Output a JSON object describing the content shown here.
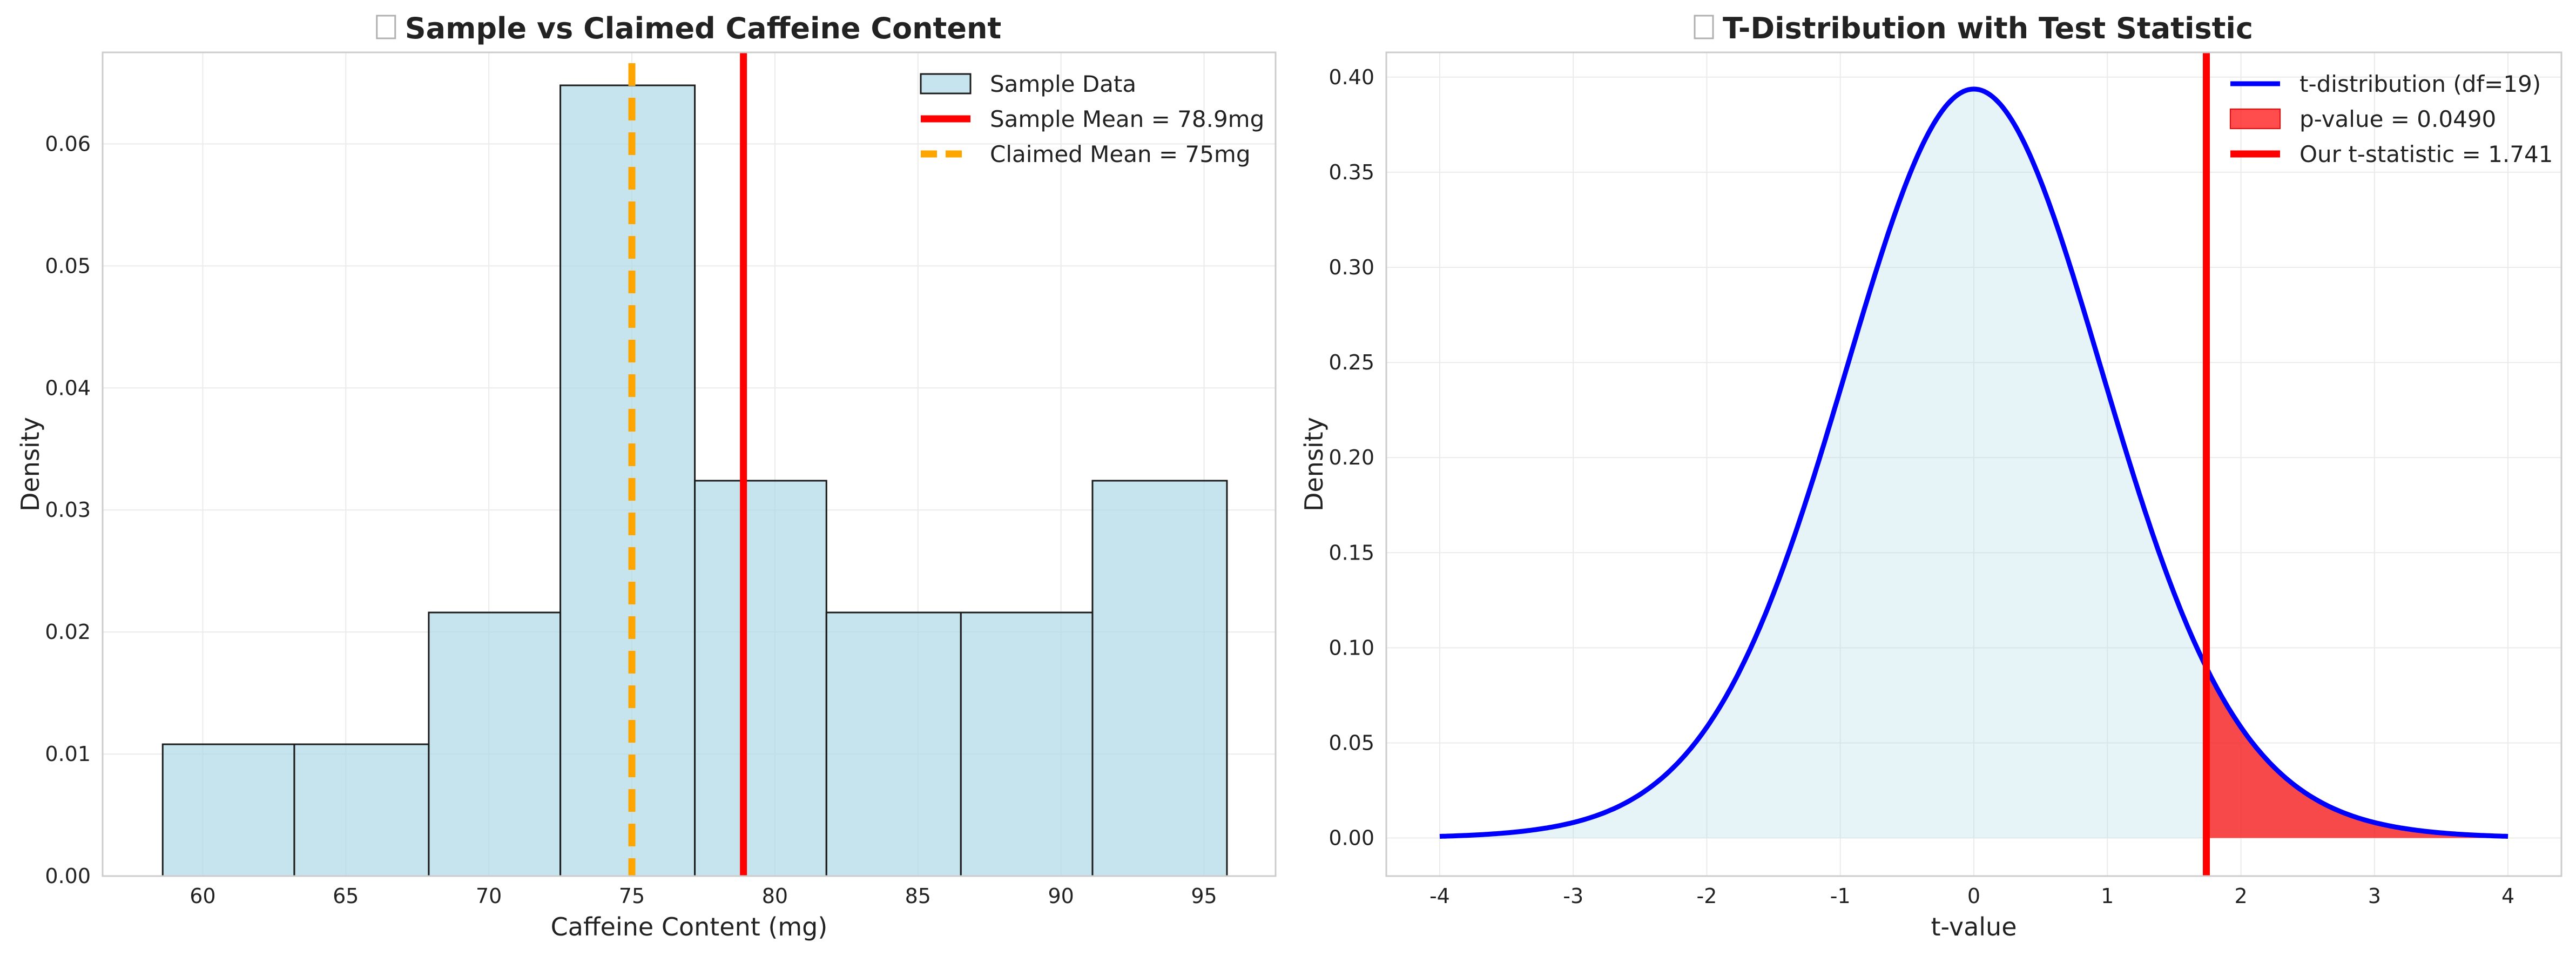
{
  "chart_data": [
    {
      "type": "bar",
      "title": "Sample vs Claimed Caffeine Content",
      "title_icon": "missing-glyph",
      "xlabel": "Caffeine Content (mg)",
      "ylabel": "Density",
      "xlim": [
        56.5,
        97.5
      ],
      "ylim": [
        0,
        0.0675
      ],
      "xticks": [
        60,
        65,
        70,
        75,
        80,
        85,
        90,
        95
      ],
      "yticks": [
        0.0,
        0.01,
        0.02,
        0.03,
        0.04,
        0.05,
        0.06
      ],
      "ytick_labels": [
        "0.00",
        "0.01",
        "0.02",
        "0.03",
        "0.04",
        "0.05",
        "0.06"
      ],
      "grid": true,
      "legend_position": "top-right",
      "bins": [
        {
          "x0": 58.6,
          "x1": 63.2,
          "value": 0.0108
        },
        {
          "x0": 63.2,
          "x1": 67.9,
          "value": 0.0108
        },
        {
          "x0": 67.9,
          "x1": 72.5,
          "value": 0.0216
        },
        {
          "x0": 72.5,
          "x1": 77.2,
          "value": 0.0648
        },
        {
          "x0": 77.2,
          "x1": 81.8,
          "value": 0.0324
        },
        {
          "x0": 81.8,
          "x1": 86.5,
          "value": 0.0216
        },
        {
          "x0": 86.5,
          "x1": 91.1,
          "value": 0.0216
        },
        {
          "x0": 91.1,
          "x1": 95.8,
          "value": 0.0324
        }
      ],
      "series": [
        {
          "name": "Sample Data",
          "kind": "histogram",
          "color": "#add8e6"
        },
        {
          "name": "Sample Mean = 78.9mg",
          "kind": "vline",
          "x": 78.9,
          "color": "#ff0000",
          "style": "solid"
        },
        {
          "name": "Claimed Mean = 75mg",
          "kind": "vline",
          "x": 75,
          "color": "#ffa500",
          "style": "dashed"
        }
      ]
    },
    {
      "type": "line",
      "title": "T-Distribution with Test Statistic",
      "title_icon": "missing-glyph",
      "xlabel": "t-value",
      "ylabel": "Density",
      "xlim": [
        -4.4,
        4.4
      ],
      "ylim": [
        -0.02,
        0.413
      ],
      "xticks": [
        -4,
        -3,
        -2,
        -1,
        0,
        1,
        2,
        3,
        4
      ],
      "yticks": [
        0.0,
        0.05,
        0.1,
        0.15,
        0.2,
        0.25,
        0.3,
        0.35,
        0.4
      ],
      "ytick_labels": [
        "0.00",
        "0.05",
        "0.10",
        "0.15",
        "0.20",
        "0.25",
        "0.30",
        "0.35",
        "0.40"
      ],
      "grid": true,
      "legend_position": "top-right",
      "df": 19,
      "curve_range": [
        -4,
        4
      ],
      "t_statistic": 1.741,
      "p_value": 0.049,
      "series": [
        {
          "name": "t-distribution (df=19)",
          "kind": "curve",
          "color": "#0000ff"
        },
        {
          "name": "p-value = 0.0490",
          "kind": "shaded-tail",
          "color": "#ff0000"
        },
        {
          "name": "Our t-statistic = 1.741",
          "kind": "vline",
          "x": 1.741,
          "color": "#ff0000",
          "style": "solid"
        }
      ],
      "fill_color": "#add8e6"
    }
  ]
}
